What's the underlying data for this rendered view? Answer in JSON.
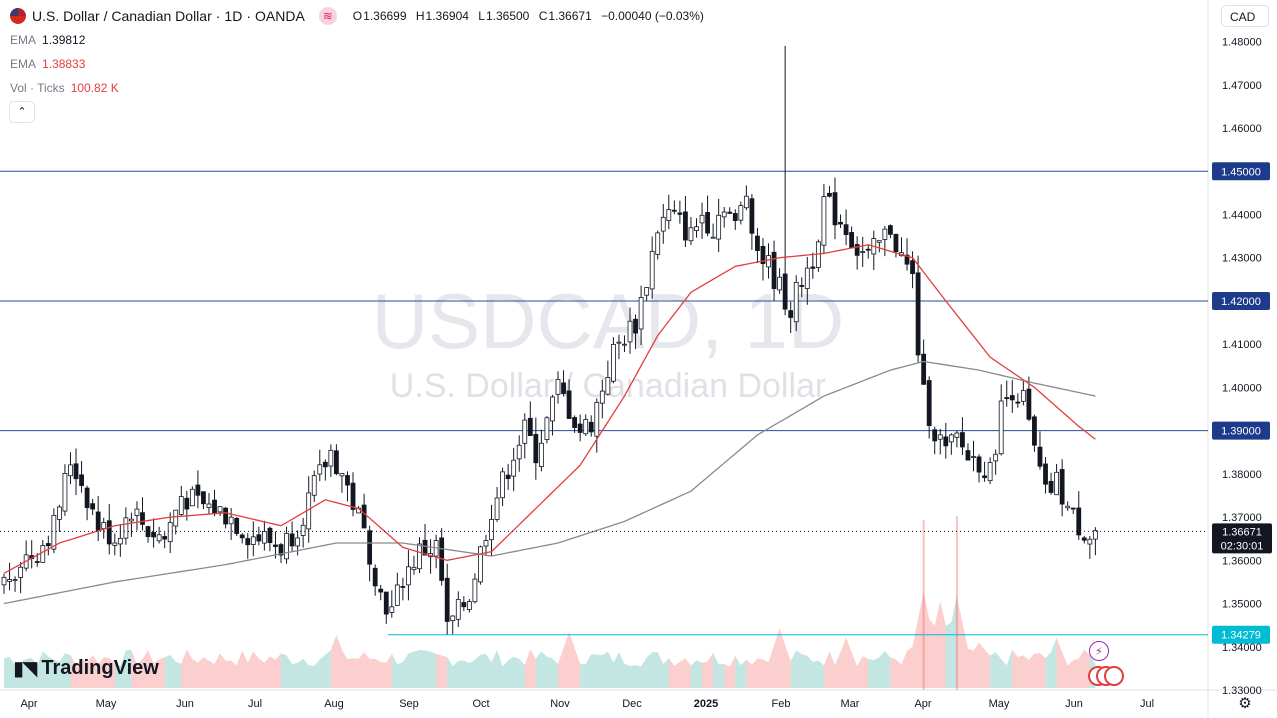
{
  "header": {
    "symbol": "U.S. Dollar / Canadian Dollar",
    "interval": "1D",
    "broker": "OANDA",
    "open_label": "O",
    "open": "1.36699",
    "high_label": "H",
    "high": "1.36904",
    "low_label": "L",
    "low": "1.36500",
    "close_label": "C",
    "close": "1.36671",
    "change": "−0.00040 (−0.03%)"
  },
  "indicators": {
    "ema1_label": "EMA",
    "ema1_value": "1.39812",
    "ema2_label": "EMA",
    "ema2_value": "1.38833",
    "vol_label": "Vol · Ticks",
    "vol_value": "100.82 K"
  },
  "currency_button": "CAD",
  "collapse_icon": "chevron-up-icon",
  "logo_text": "TradingView",
  "watermark": {
    "ticker": "USDCAD, 1D",
    "name": "U.S. Dollar / Canadian Dollar"
  },
  "price_tag": {
    "price": "1.36671",
    "countdown": "02:30:01"
  },
  "colors": {
    "up": "#26a69a",
    "down": "#ef5350",
    "candle": "#131722",
    "ema_fast": "#e23f3f",
    "ema_slow": "#8a8a8a",
    "hline": "#2a4d9b",
    "support": "#00bcd4"
  },
  "chart_data": {
    "type": "candlestick",
    "x_ticks": [
      "Apr",
      "May",
      "Jun",
      "Jul",
      "Aug",
      "Sep",
      "Oct",
      "Nov",
      "Dec",
      "2025",
      "Feb",
      "Mar",
      "Apr",
      "May",
      "Jun",
      "Jul"
    ],
    "y_ticks": [
      "1.48000",
      "1.47000",
      "1.46000",
      "1.45000",
      "1.44000",
      "1.43000",
      "1.42000",
      "1.41000",
      "1.40000",
      "1.39000",
      "1.38000",
      "1.37000",
      "1.36000",
      "1.35000",
      "1.34000",
      "1.33000"
    ],
    "ylim": [
      1.33,
      1.485
    ],
    "horizontal_levels": [
      {
        "value": 1.45,
        "label": "1.45000",
        "color": "#2a4d9b"
      },
      {
        "value": 1.42,
        "label": "1.42000",
        "color": "#2a4d9b"
      },
      {
        "value": 1.39,
        "label": "1.39000",
        "color": "#2a4d9b"
      },
      {
        "value": 1.34279,
        "label": "1.34279",
        "color": "#00bcd4"
      }
    ],
    "last_price": 1.36671,
    "price_path": [
      [
        0,
        1.355
      ],
      [
        3,
        1.36
      ],
      [
        6,
        1.362
      ],
      [
        9,
        1.368
      ],
      [
        12,
        1.383
      ],
      [
        14,
        1.378
      ],
      [
        17,
        1.368
      ],
      [
        20,
        1.365
      ],
      [
        23,
        1.372
      ],
      [
        26,
        1.367
      ],
      [
        29,
        1.365
      ],
      [
        32,
        1.375
      ],
      [
        35,
        1.373
      ],
      [
        38,
        1.372
      ],
      [
        41,
        1.37
      ],
      [
        44,
        1.366
      ],
      [
        47,
        1.365
      ],
      [
        50,
        1.363
      ],
      [
        53,
        1.368
      ],
      [
        56,
        1.377
      ],
      [
        59,
        1.385
      ],
      [
        61,
        1.38
      ],
      [
        64,
        1.37
      ],
      [
        66,
        1.362
      ],
      [
        68,
        1.352
      ],
      [
        70,
        1.348
      ],
      [
        72,
        1.356
      ],
      [
        75,
        1.362
      ],
      [
        78,
        1.363
      ],
      [
        79,
        1.355
      ],
      [
        80,
        1.344
      ],
      [
        82,
        1.348
      ],
      [
        84,
        1.352
      ],
      [
        86,
        1.362
      ],
      [
        88,
        1.372
      ],
      [
        90,
        1.378
      ],
      [
        92,
        1.385
      ],
      [
        94,
        1.39
      ],
      [
        96,
        1.385
      ],
      [
        98,
        1.392
      ],
      [
        100,
        1.4
      ],
      [
        102,
        1.395
      ],
      [
        104,
        1.39
      ],
      [
        106,
        1.392
      ],
      [
        108,
        1.4
      ],
      [
        110,
        1.408
      ],
      [
        112,
        1.412
      ],
      [
        114,
        1.415
      ],
      [
        116,
        1.425
      ],
      [
        118,
        1.437
      ],
      [
        120,
        1.44
      ],
      [
        122,
        1.438
      ],
      [
        124,
        1.435
      ],
      [
        126,
        1.44
      ],
      [
        128,
        1.437
      ],
      [
        130,
        1.443
      ],
      [
        132,
        1.437
      ],
      [
        134,
        1.445
      ],
      [
        136,
        1.432
      ],
      [
        138,
        1.428
      ],
      [
        140,
        1.423
      ],
      [
        142,
        1.418
      ],
      [
        144,
        1.425
      ],
      [
        146,
        1.43
      ],
      [
        148,
        1.443
      ],
      [
        150,
        1.44
      ],
      [
        152,
        1.437
      ],
      [
        154,
        1.432
      ],
      [
        156,
        1.43
      ],
      [
        158,
        1.433
      ],
      [
        160,
        1.437
      ],
      [
        162,
        1.43
      ],
      [
        164,
        1.425
      ],
      [
        165,
        1.409
      ],
      [
        166,
        1.398
      ],
      [
        168,
        1.39
      ],
      [
        170,
        1.385
      ],
      [
        172,
        1.388
      ],
      [
        174,
        1.384
      ],
      [
        176,
        1.383
      ],
      [
        178,
        1.38
      ],
      [
        180,
        1.395
      ],
      [
        182,
        1.4
      ],
      [
        184,
        1.397
      ],
      [
        186,
        1.385
      ],
      [
        188,
        1.375
      ],
      [
        190,
        1.378
      ],
      [
        192,
        1.372
      ],
      [
        194,
        1.368
      ],
      [
        196,
        1.366
      ],
      [
        197,
        1.3667
      ]
    ],
    "ema_fast_path": [
      [
        0,
        1.357
      ],
      [
        10,
        1.364
      ],
      [
        20,
        1.368
      ],
      [
        30,
        1.37
      ],
      [
        40,
        1.371
      ],
      [
        50,
        1.368
      ],
      [
        58,
        1.374
      ],
      [
        64,
        1.372
      ],
      [
        72,
        1.363
      ],
      [
        80,
        1.36
      ],
      [
        88,
        1.362
      ],
      [
        96,
        1.372
      ],
      [
        104,
        1.382
      ],
      [
        112,
        1.398
      ],
      [
        118,
        1.412
      ],
      [
        124,
        1.422
      ],
      [
        132,
        1.428
      ],
      [
        140,
        1.43
      ],
      [
        148,
        1.431
      ],
      [
        156,
        1.433
      ],
      [
        164,
        1.43
      ],
      [
        170,
        1.42
      ],
      [
        178,
        1.407
      ],
      [
        186,
        1.4
      ],
      [
        194,
        1.391
      ],
      [
        197,
        1.388
      ]
    ],
    "ema_slow_path": [
      [
        0,
        1.35
      ],
      [
        20,
        1.355
      ],
      [
        40,
        1.359
      ],
      [
        60,
        1.364
      ],
      [
        72,
        1.364
      ],
      [
        88,
        1.361
      ],
      [
        100,
        1.364
      ],
      [
        112,
        1.369
      ],
      [
        124,
        1.376
      ],
      [
        136,
        1.389
      ],
      [
        148,
        1.398
      ],
      [
        160,
        1.404
      ],
      [
        166,
        1.406
      ],
      [
        176,
        1.404
      ],
      [
        186,
        1.401
      ],
      [
        197,
        1.398
      ]
    ],
    "volume_spikes": [
      [
        60,
        0.55
      ],
      [
        102,
        0.58
      ],
      [
        140,
        0.62
      ],
      [
        152,
        0.52
      ],
      [
        166,
        1.0
      ],
      [
        169,
        0.9
      ],
      [
        172,
        0.95
      ],
      [
        176,
        0.47
      ],
      [
        190,
        0.52
      ]
    ]
  }
}
